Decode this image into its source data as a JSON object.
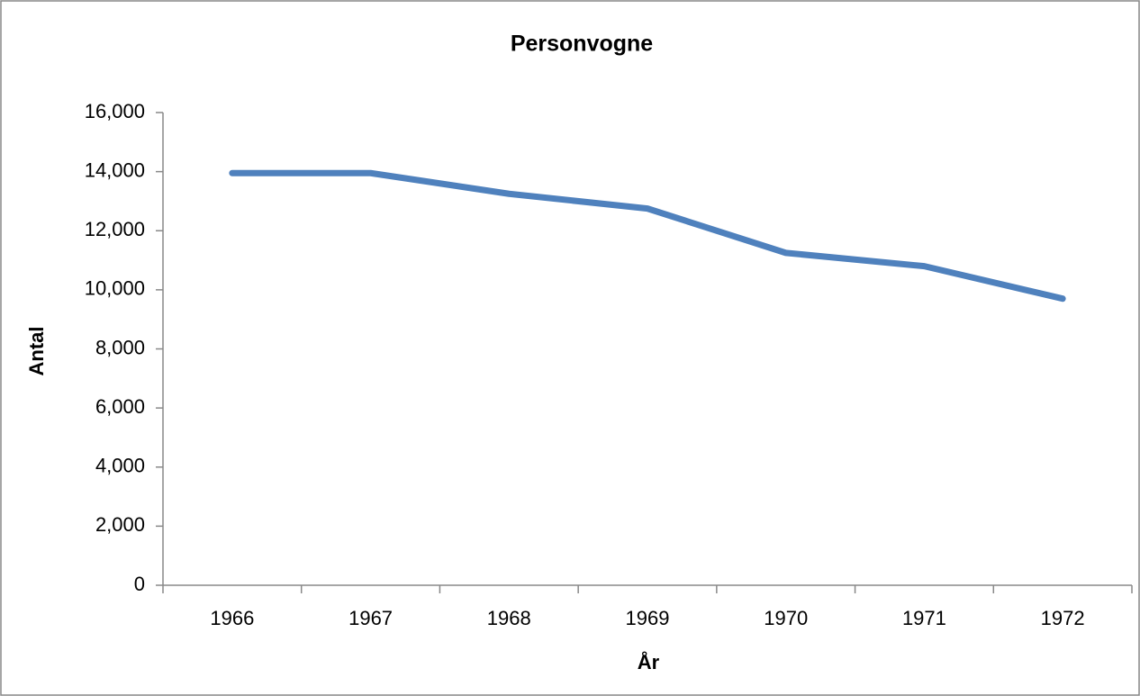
{
  "chart_data": {
    "type": "line",
    "title": "Personvogne",
    "x_label": "År",
    "y_label": "Antal",
    "categories": [
      "1966",
      "1967",
      "1968",
      "1969",
      "1970",
      "1971",
      "1972"
    ],
    "series": [
      {
        "name": "Personvogne",
        "color": "#4f81bd",
        "values": [
          13950,
          13950,
          13250,
          12750,
          11250,
          10800,
          9700
        ]
      }
    ],
    "ylim": [
      0,
      16000
    ],
    "yticks": [
      0,
      {
        "value": 2000,
        "label": "2,000"
      },
      {
        "value": 4000,
        "label": "4,000"
      },
      {
        "value": 6000,
        "label": "6,000"
      },
      {
        "value": 8000,
        "label": "8,000"
      },
      {
        "value": 10000,
        "label": "10,000"
      },
      {
        "value": 12000,
        "label": "12,000"
      },
      {
        "value": 14000,
        "label": "14,000"
      },
      {
        "value": 16000,
        "label": "16,000"
      }
    ],
    "grid": false
  }
}
